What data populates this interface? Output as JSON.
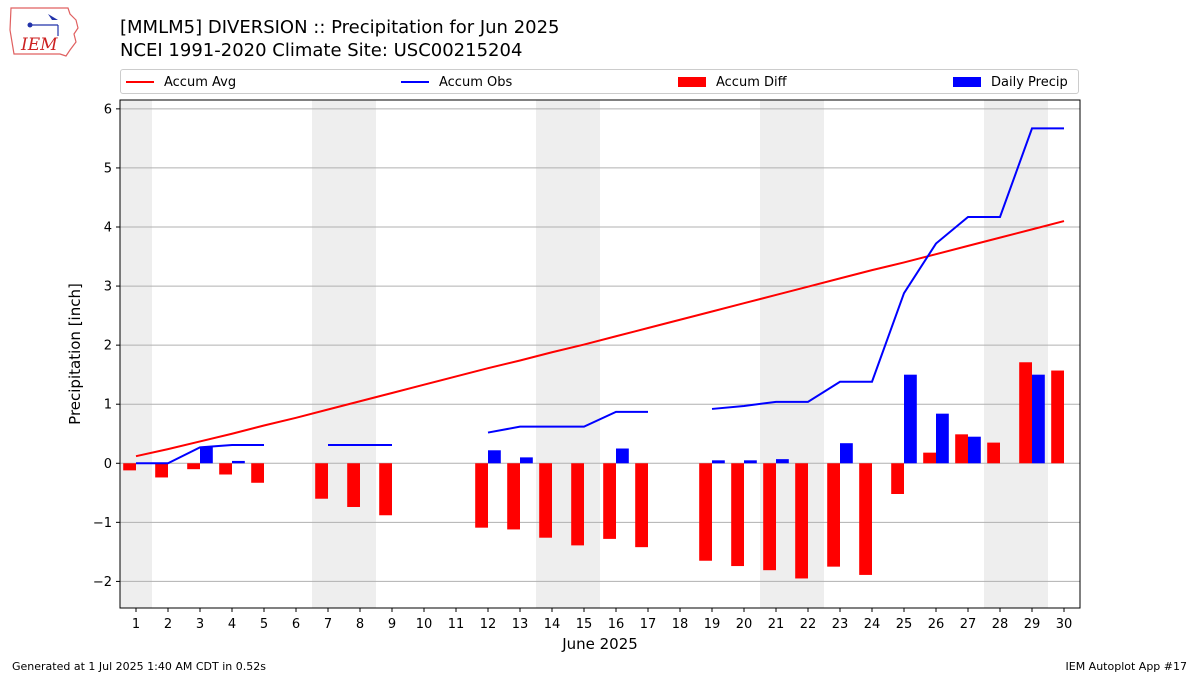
{
  "header": {
    "title_line1": "[MMLM5] DIVERSION :: Precipitation for Jun 2025",
    "title_line2": "NCEI 1991-2020 Climate Site: USC00215204",
    "logo_text": "IEM"
  },
  "legend": {
    "items": [
      {
        "label": "Accum Avg",
        "kind": "line",
        "color": "#ff0000"
      },
      {
        "label": "Accum Obs",
        "kind": "line",
        "color": "#0000ff"
      },
      {
        "label": "Accum Diff",
        "kind": "bar",
        "color": "#ff0000"
      },
      {
        "label": "Daily Precip",
        "kind": "bar",
        "color": "#0000ff"
      }
    ]
  },
  "footer": {
    "left": "Generated at 1 Jul 2025 1:40 AM CDT in 0.52s",
    "right": "IEM Autoplot App #17"
  },
  "chart_data": {
    "type": "bar",
    "xlabel": "June 2025",
    "ylabel": "Precipitation [inch]",
    "days": [
      1,
      2,
      3,
      4,
      5,
      6,
      7,
      8,
      9,
      10,
      11,
      12,
      13,
      14,
      15,
      16,
      17,
      18,
      19,
      20,
      21,
      22,
      23,
      24,
      25,
      26,
      27,
      28,
      29,
      30
    ],
    "xlim": [
      0.5,
      30.5
    ],
    "ylim": [
      -2.45,
      6.15
    ],
    "yticks": [
      -2,
      -1,
      0,
      1,
      2,
      3,
      4,
      5,
      6
    ],
    "weekend_shading": [
      [
        0.5,
        1.5
      ],
      [
        6.5,
        8.5
      ],
      [
        13.5,
        15.5
      ],
      [
        20.5,
        22.5
      ],
      [
        27.5,
        29.5
      ]
    ],
    "grid": "horizontal",
    "legend_position": "top",
    "colors": {
      "avg": "#ff0000",
      "obs": "#0000ff",
      "diff": "#ff0000",
      "daily": "#0000ff",
      "shade": "#eeeeee",
      "grid": "#b0b0b0"
    },
    "series": [
      {
        "name": "Accum Avg",
        "type": "line",
        "values": [
          0.12,
          0.24,
          0.37,
          0.5,
          0.64,
          0.77,
          0.91,
          1.05,
          1.19,
          1.33,
          1.47,
          1.61,
          1.74,
          1.88,
          2.01,
          2.15,
          2.29,
          2.43,
          2.57,
          2.71,
          2.85,
          2.99,
          3.13,
          3.27,
          3.4,
          3.54,
          3.68,
          3.82,
          3.96,
          4.1
        ]
      },
      {
        "name": "Accum Obs",
        "type": "line",
        "values": [
          0.0,
          0.0,
          0.27,
          0.31,
          0.31,
          null,
          0.31,
          0.31,
          0.31,
          null,
          null,
          0.52,
          0.62,
          0.62,
          0.62,
          0.87,
          0.87,
          null,
          0.92,
          0.97,
          1.04,
          1.04,
          1.38,
          1.38,
          2.88,
          3.72,
          4.17,
          4.17,
          5.67,
          5.67
        ]
      },
      {
        "name": "Accum Diff",
        "type": "bar",
        "values": [
          -0.12,
          -0.24,
          -0.1,
          -0.19,
          -0.33,
          null,
          -0.6,
          -0.74,
          -0.88,
          null,
          null,
          -1.09,
          -1.12,
          -1.26,
          -1.39,
          -1.28,
          -1.42,
          null,
          -1.65,
          -1.74,
          -1.81,
          -1.95,
          -1.75,
          -1.89,
          -0.52,
          0.18,
          0.49,
          0.35,
          1.71,
          1.57
        ]
      },
      {
        "name": "Daily Precip",
        "type": "bar",
        "values": [
          0,
          0,
          0.27,
          0.04,
          0,
          null,
          0,
          0,
          0,
          null,
          null,
          0.22,
          0.1,
          0,
          0,
          0.25,
          0,
          null,
          0.05,
          0.05,
          0.07,
          0,
          0.34,
          0,
          1.5,
          0.84,
          0.45,
          0,
          1.5,
          0
        ]
      }
    ]
  }
}
